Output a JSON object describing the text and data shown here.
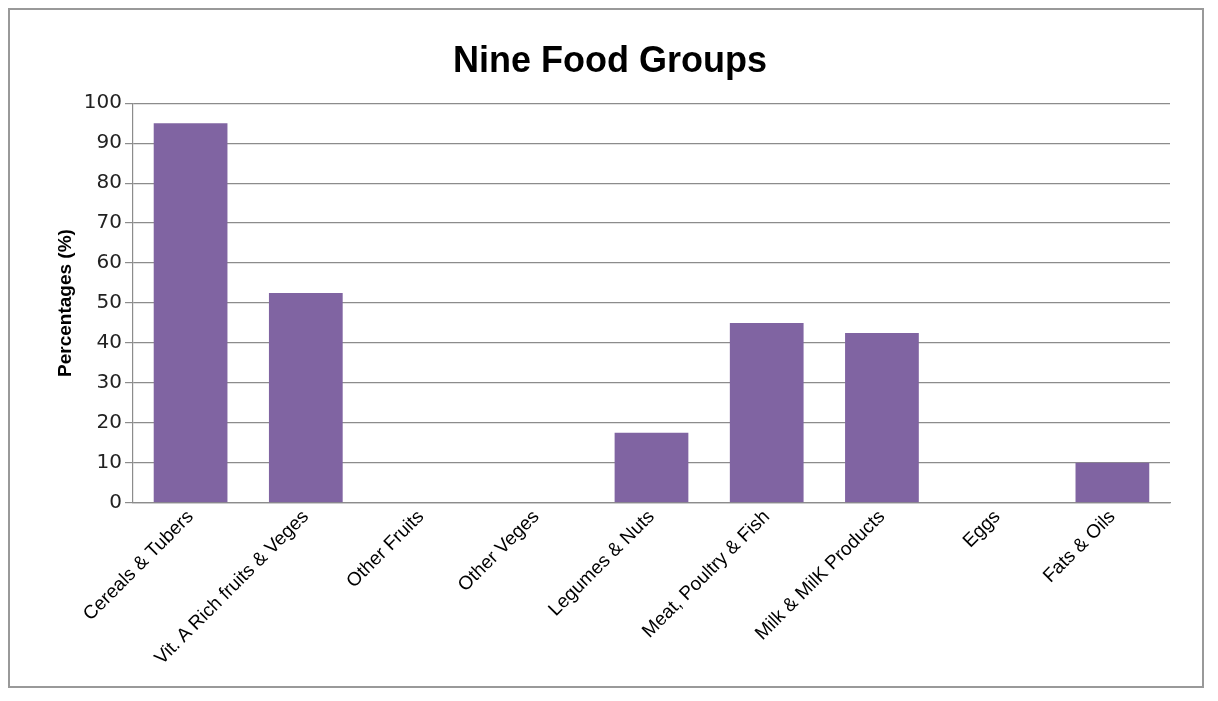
{
  "chart_data": {
    "type": "bar",
    "title": "Nine Food Groups",
    "ylabel": "Percentages (%)",
    "categories": [
      "Cereals & Tubers",
      "Vit. A Rich fruits & Veges",
      "Other Fruits",
      "Other Veges",
      "Legumes & Nuts",
      "Meat, Poultry & Fish",
      "Milk & MilK Products",
      "Eggs",
      "Fats & Oils"
    ],
    "values": [
      95,
      52.5,
      0,
      0,
      17.5,
      45,
      42.5,
      0,
      10
    ],
    "color": "#8064a2",
    "ylim": [
      0,
      100
    ],
    "yticks": [
      0,
      10,
      20,
      30,
      40,
      50,
      60,
      70,
      80,
      90,
      100
    ],
    "grid": "y",
    "legend": false
  }
}
